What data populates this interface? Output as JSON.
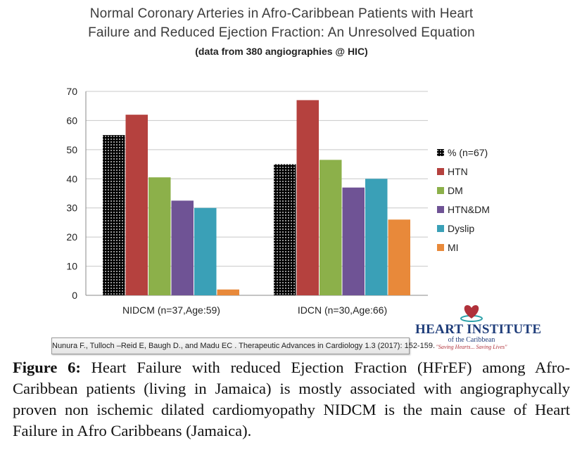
{
  "chart_data": {
    "type": "bar",
    "title": "Normal Coronary Arteries in Afro-Caribbean Patients with Heart Failure and Reduced Ejection Fraction: An Unresolved Equation",
    "title_lines": [
      "Normal Coronary Arteries in Afro-Caribbean Patients with Heart",
      "Failure and Reduced Ejection Fraction: An Unresolved Equation"
    ],
    "subtitle": "(data from 380 angiographies @ HIC)",
    "categories": [
      "NIDCM (n=37,Age:59)",
      "IDCN (n=30,Age:66)"
    ],
    "series": [
      {
        "name": "% (n=67)",
        "values": [
          55,
          45
        ],
        "color": "#000000",
        "pattern": "dots"
      },
      {
        "name": "HTN",
        "values": [
          62,
          67
        ],
        "color": "#b5413e"
      },
      {
        "name": "DM",
        "values": [
          40.5,
          46.5
        ],
        "color": "#8cb04a"
      },
      {
        "name": "HTN&DM",
        "values": [
          32.5,
          37
        ],
        "color": "#6f5395"
      },
      {
        "name": "Dyslip",
        "values": [
          30,
          40
        ],
        "color": "#3aa0b7"
      },
      {
        "name": "MI",
        "values": [
          2,
          26
        ],
        "color": "#e8893a"
      }
    ],
    "ylim": [
      0,
      70
    ],
    "yticks": [
      0,
      10,
      20,
      30,
      40,
      50,
      60,
      70
    ],
    "xlabel": "",
    "ylabel": "",
    "grid": true,
    "legend": "right"
  },
  "citation": "Nunura F., Tulloch –Reid E, Baugh D., and Madu EC . Therapeutic Advances in Cardiology 1.3 (2017): 152-159.",
  "logo": {
    "name": "HEART INSTITUTE",
    "sub": "of the Caribbean",
    "tagline": "\"Saving Hearts... Saving Lives\""
  },
  "caption": {
    "label": "Figure 6:",
    "text": " Heart Failure with reduced Ejection Fraction (HFrEF) among Afro-Caribbean patients (living in Jamaica) is mostly associated with angiographycally proven non ischemic dilated cardiomyopathy NIDCM is the main cause of Heart Failure in Afro Caribbeans (Jamaica)."
  },
  "colors": {
    "grid": "#c8c8c8",
    "axis": "#8a8a8a",
    "logo_blue": "#1f3d7a",
    "logo_red": "#b0313a",
    "logo_teal": "#2aa0a8"
  }
}
